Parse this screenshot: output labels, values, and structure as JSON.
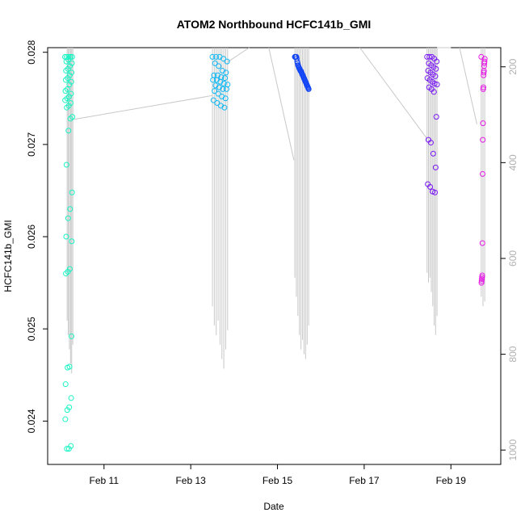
{
  "chart_data": {
    "type": "scatter",
    "title": "ATOM2 Northbound HCFC141b_GMI",
    "xlabel": "Date",
    "ylabel": "HCFC141b_GMI",
    "xlim": [
      9.7,
      20.15
    ],
    "ylim": [
      0.02353,
      0.02805
    ],
    "y2lim": [
      1030,
      160
    ],
    "x_ticks": [
      {
        "value": 11,
        "label": "Feb 11"
      },
      {
        "value": 13,
        "label": "Feb 13"
      },
      {
        "value": 15,
        "label": "Feb 15"
      },
      {
        "value": 17,
        "label": "Feb 17"
      },
      {
        "value": 19,
        "label": "Feb 19"
      }
    ],
    "y_ticks": [
      {
        "value": 0.024,
        "label": "0.024"
      },
      {
        "value": 0.025,
        "label": "0.025"
      },
      {
        "value": 0.026,
        "label": "0.026"
      },
      {
        "value": 0.027,
        "label": "0.027"
      },
      {
        "value": 0.028,
        "label": "0.028"
      }
    ],
    "y2_ticks": [
      {
        "value": 200,
        "label": "200"
      },
      {
        "value": 400,
        "label": "400"
      },
      {
        "value": 600,
        "label": "600"
      },
      {
        "value": 800,
        "label": "800"
      },
      {
        "value": 1000,
        "label": "1000"
      }
    ],
    "pressure_trace": {
      "color": "#c8c8c8",
      "flights": [
        {
          "x0": 10.15,
          "x1": 10.28,
          "count": 6,
          "low": [
            730,
            760,
            790,
            820,
            840,
            780
          ]
        },
        {
          "x0": 13.5,
          "x1": 13.85,
          "count": 9,
          "low": [
            700,
            740,
            760,
            730,
            780,
            810,
            830,
            790,
            750
          ]
        },
        {
          "x0": 15.4,
          "x1": 15.72,
          "count": 10,
          "low": [
            640,
            680,
            720,
            760,
            790,
            770,
            800,
            810,
            780,
            740
          ]
        },
        {
          "x0": 18.45,
          "x1": 18.68,
          "count": 8,
          "low": [
            630,
            650,
            640,
            670,
            700,
            740,
            760,
            720
          ]
        },
        {
          "x0": 19.7,
          "x1": 19.78,
          "count": 3,
          "low": [
            680,
            700,
            690
          ]
        }
      ],
      "transits": [
        [
          [
            10.28,
            310
          ],
          [
            13.5,
            260
          ]
        ],
        [
          [
            13.85,
            190
          ],
          [
            14.35,
            160
          ]
        ],
        [
          [
            14.8,
            160
          ],
          [
            15.38,
            395
          ]
        ],
        [
          [
            16.9,
            160
          ],
          [
            18.45,
            350
          ]
        ],
        [
          [
            18.68,
            160
          ],
          [
            19.0,
            160
          ]
        ],
        [
          [
            19.2,
            160
          ],
          [
            19.6,
            320
          ]
        ]
      ]
    },
    "series": [
      {
        "color": "#19f5c4",
        "x_range": [
          10.1,
          10.27
        ],
        "values": [
          0.02795,
          0.02795,
          0.02795,
          0.02795,
          0.02795,
          0.02795,
          0.02792,
          0.0279,
          0.02788,
          0.02785,
          0.02782,
          0.0278,
          0.02778,
          0.02775,
          0.02772,
          0.0277,
          0.02768,
          0.02765,
          0.0276,
          0.02758,
          0.02755,
          0.02752,
          0.0275,
          0.02748,
          0.02745,
          0.02742,
          0.0274,
          0.0273,
          0.02728,
          0.02715,
          0.02678,
          0.02648,
          0.0263,
          0.0262,
          0.026,
          0.02595,
          0.02565,
          0.02562,
          0.0256,
          0.02492,
          0.02459,
          0.02458,
          0.0244,
          0.02425,
          0.02415,
          0.02412,
          0.02402,
          0.02373,
          0.0237,
          0.0237
        ]
      },
      {
        "color": "#0fb8f5",
        "x_range": [
          13.5,
          13.85
        ],
        "values": [
          0.02795,
          0.02795,
          0.02795,
          0.02793,
          0.0279,
          0.02788,
          0.02785,
          0.0278,
          0.02778,
          0.02775,
          0.02775,
          0.02773,
          0.02772,
          0.0277,
          0.0277,
          0.02768,
          0.02766,
          0.02765,
          0.02764,
          0.02762,
          0.0276,
          0.0276,
          0.02758,
          0.02755,
          0.02752,
          0.0275,
          0.02748,
          0.02745,
          0.02742,
          0.0274
        ]
      },
      {
        "color": "#1446f5",
        "x_range": [
          15.4,
          15.72
        ],
        "values": [
          0.02795,
          0.02795,
          0.02795,
          0.02795,
          0.02795,
          0.02793,
          0.0279,
          0.02788,
          0.02786,
          0.02785,
          0.02784,
          0.02783,
          0.02782,
          0.02781,
          0.0278,
          0.0278,
          0.02779,
          0.02778,
          0.02777,
          0.02776,
          0.02775,
          0.02774,
          0.02773,
          0.02772,
          0.02771,
          0.0277,
          0.02769,
          0.02768,
          0.02767,
          0.02766,
          0.02765,
          0.02764,
          0.02763,
          0.02762,
          0.02761,
          0.0276
        ]
      },
      {
        "color": "#7a1af5",
        "x_range": [
          18.45,
          18.68
        ],
        "values": [
          0.02795,
          0.02795,
          0.02795,
          0.02793,
          0.0279,
          0.02788,
          0.02786,
          0.02784,
          0.02782,
          0.0278,
          0.02778,
          0.02776,
          0.02774,
          0.02772,
          0.0277,
          0.02768,
          0.02766,
          0.02765,
          0.02762,
          0.0276,
          0.02757,
          0.0273,
          0.02705,
          0.02702,
          0.0269,
          0.02675,
          0.02657,
          0.02654,
          0.02649,
          0.02648
        ]
      },
      {
        "color": "#e619e6",
        "x_range": [
          19.7,
          19.78
        ],
        "values": [
          0.02795,
          0.02793,
          0.0279,
          0.02788,
          0.02785,
          0.0278,
          0.02778,
          0.02775,
          0.02762,
          0.0276,
          0.02723,
          0.02705,
          0.02668,
          0.02593,
          0.02558,
          0.02556,
          0.02554,
          0.02552,
          0.0255
        ]
      }
    ]
  }
}
